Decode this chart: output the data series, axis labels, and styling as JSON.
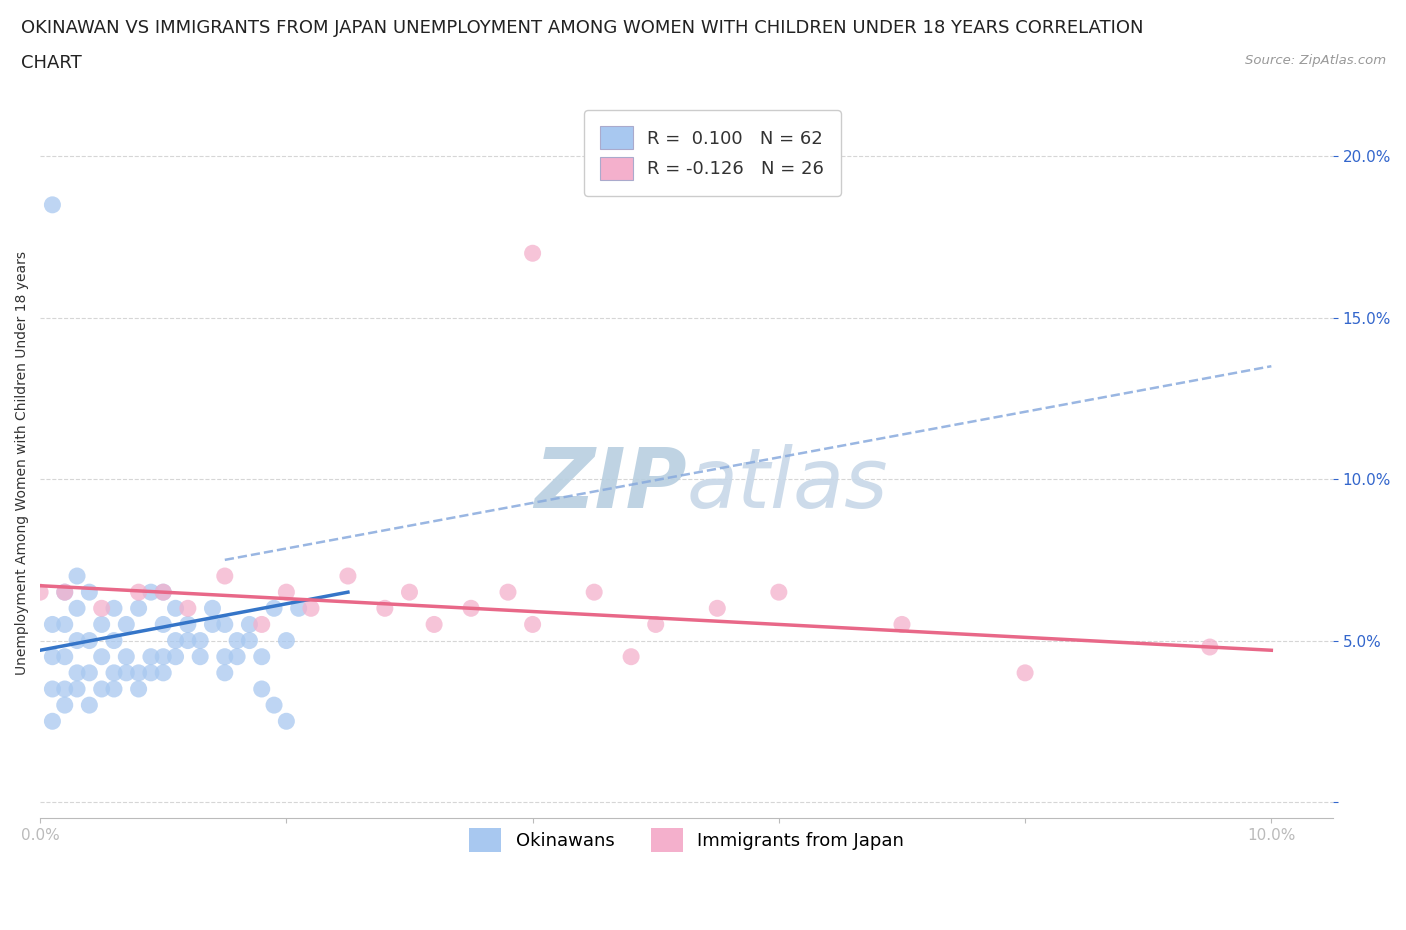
{
  "title_line1": "OKINAWAN VS IMMIGRANTS FROM JAPAN UNEMPLOYMENT AMONG WOMEN WITH CHILDREN UNDER 18 YEARS CORRELATION",
  "title_line2": "CHART",
  "source": "Source: ZipAtlas.com",
  "ylabel": "Unemployment Among Women with Children Under 18 years",
  "xlim": [
    0.0,
    0.105
  ],
  "ylim": [
    -0.005,
    0.215
  ],
  "ytick_vals": [
    0.0,
    0.05,
    0.1,
    0.15,
    0.2
  ],
  "ytick_labels": [
    "",
    "5.0%",
    "10.0%",
    "15.0%",
    "20.0%"
  ],
  "xtick_vals": [
    0.0,
    0.02,
    0.04,
    0.06,
    0.08,
    0.1
  ],
  "xtick_labels": [
    "0.0%",
    "",
    "",
    "",
    "",
    "10.0%"
  ],
  "r_okinawan": 0.1,
  "n_okinawan": 62,
  "r_immigrant": -0.126,
  "n_immigrant": 26,
  "okinawan_color": "#a8c8f0",
  "immigrant_color": "#f4b0cc",
  "okinawan_line_color": "#3575c8",
  "immigrant_line_color": "#e86888",
  "dashed_line_color": "#88aadd",
  "background_color": "#ffffff",
  "tick_color": "#3366cc",
  "legend_label_1": "Okinawans",
  "legend_label_2": "Immigrants from Japan",
  "title_fontsize": 13,
  "axis_label_fontsize": 10,
  "tick_fontsize": 11,
  "legend_fontsize": 13,
  "watermark_color": "#cddceb",
  "ok_x": [
    0.001,
    0.001,
    0.001,
    0.001,
    0.002,
    0.002,
    0.002,
    0.002,
    0.003,
    0.003,
    0.003,
    0.003,
    0.004,
    0.004,
    0.004,
    0.005,
    0.005,
    0.006,
    0.006,
    0.006,
    0.007,
    0.007,
    0.008,
    0.008,
    0.009,
    0.009,
    0.01,
    0.01,
    0.01,
    0.011,
    0.011,
    0.012,
    0.013,
    0.014,
    0.015,
    0.015,
    0.016,
    0.017,
    0.018,
    0.019,
    0.02,
    0.021,
    0.001,
    0.002,
    0.003,
    0.004,
    0.005,
    0.006,
    0.007,
    0.008,
    0.009,
    0.01,
    0.011,
    0.012,
    0.013,
    0.014,
    0.015,
    0.016,
    0.017,
    0.018,
    0.019,
    0.02
  ],
  "ok_y": [
    0.185,
    0.035,
    0.045,
    0.055,
    0.035,
    0.045,
    0.055,
    0.065,
    0.04,
    0.05,
    0.06,
    0.07,
    0.04,
    0.05,
    0.065,
    0.045,
    0.055,
    0.04,
    0.05,
    0.06,
    0.045,
    0.055,
    0.04,
    0.06,
    0.045,
    0.065,
    0.045,
    0.055,
    0.065,
    0.05,
    0.06,
    0.055,
    0.05,
    0.06,
    0.045,
    0.055,
    0.05,
    0.055,
    0.045,
    0.06,
    0.05,
    0.06,
    0.025,
    0.03,
    0.035,
    0.03,
    0.035,
    0.035,
    0.04,
    0.035,
    0.04,
    0.04,
    0.045,
    0.05,
    0.045,
    0.055,
    0.04,
    0.045,
    0.05,
    0.035,
    0.03,
    0.025
  ],
  "im_x": [
    0.0,
    0.002,
    0.005,
    0.008,
    0.01,
    0.012,
    0.015,
    0.018,
    0.02,
    0.022,
    0.025,
    0.028,
    0.03,
    0.032,
    0.035,
    0.038,
    0.04,
    0.04,
    0.045,
    0.048,
    0.05,
    0.055,
    0.06,
    0.07,
    0.08,
    0.095
  ],
  "im_y": [
    0.065,
    0.065,
    0.06,
    0.065,
    0.065,
    0.06,
    0.07,
    0.055,
    0.065,
    0.06,
    0.07,
    0.06,
    0.065,
    0.055,
    0.06,
    0.065,
    0.17,
    0.055,
    0.065,
    0.045,
    0.055,
    0.06,
    0.065,
    0.055,
    0.04,
    0.048
  ],
  "ok_line_x": [
    0.0,
    0.025
  ],
  "ok_line_y": [
    0.047,
    0.065
  ],
  "im_line_x": [
    0.0,
    0.1
  ],
  "im_line_y": [
    0.067,
    0.047
  ],
  "dash_line_x": [
    0.015,
    0.1
  ],
  "dash_line_y": [
    0.075,
    0.135
  ]
}
